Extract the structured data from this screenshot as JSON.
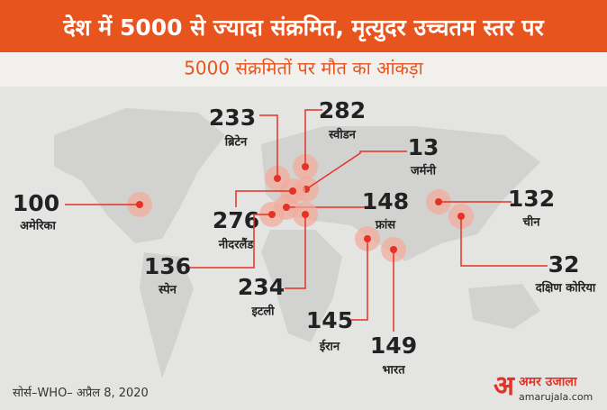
{
  "header": {
    "title": "देश में 5000 से ज्यादा संक्रमित, मृत्युदर उच्चतम स्तर पर",
    "subtitle": "5000 संक्रमितों पर मौत का आंकड़ा"
  },
  "countries": [
    {
      "name": "ब्रिटेन",
      "value": 233
    },
    {
      "name": "स्वीडन",
      "value": 282
    },
    {
      "name": "जर्मनी",
      "value": 13
    },
    {
      "name": "नीदरलैंड",
      "value": 276
    },
    {
      "name": "फ्रांस",
      "value": 148
    },
    {
      "name": "अमेरिका",
      "value": 100
    },
    {
      "name": "चीन",
      "value": 132
    },
    {
      "name": "दक्षिण कोरिया",
      "value": 32
    },
    {
      "name": "स्पेन",
      "value": 136
    },
    {
      "name": "इटली",
      "value": 234
    },
    {
      "name": "ईरान",
      "value": 145
    },
    {
      "name": "भारत",
      "value": 149
    }
  ],
  "source": "सोर्स–WHO– अप्रैल 8, 2020",
  "logo": {
    "name": "अमर उजाला",
    "site": "amarujala.com"
  }
}
